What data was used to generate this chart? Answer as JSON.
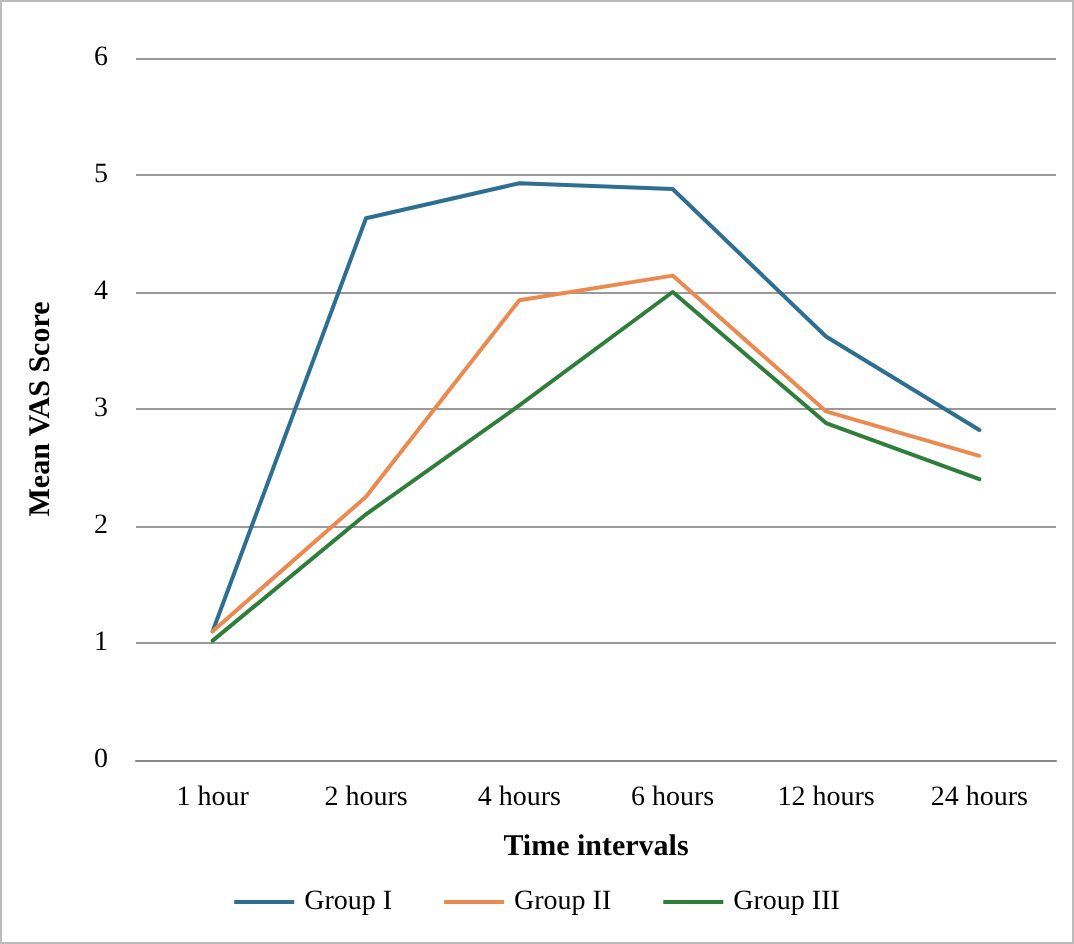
{
  "chart_data": {
    "type": "line",
    "xlabel": "Time intervals",
    "ylabel": "Mean VAS Score",
    "categories": [
      "1 hour",
      "2 hours",
      "4 hours",
      "6 hours",
      "12 hours",
      "24 hours"
    ],
    "series": [
      {
        "name": "Group I",
        "color": "#2e6e91",
        "values": [
          1.1,
          4.63,
          4.93,
          4.88,
          3.62,
          2.82
        ]
      },
      {
        "name": "Group II",
        "color": "#ea8a50",
        "values": [
          1.1,
          2.25,
          3.93,
          4.14,
          2.98,
          2.6
        ]
      },
      {
        "name": "Group III",
        "color": "#2f7d3b",
        "values": [
          1.02,
          2.1,
          3.03,
          4.0,
          2.88,
          2.4
        ]
      }
    ],
    "ylim": [
      0,
      6
    ],
    "yticks": [
      0,
      1,
      2,
      3,
      4,
      5,
      6
    ],
    "grid": "y",
    "legend": "bottom",
    "marker": "none",
    "line_style": "solid"
  }
}
